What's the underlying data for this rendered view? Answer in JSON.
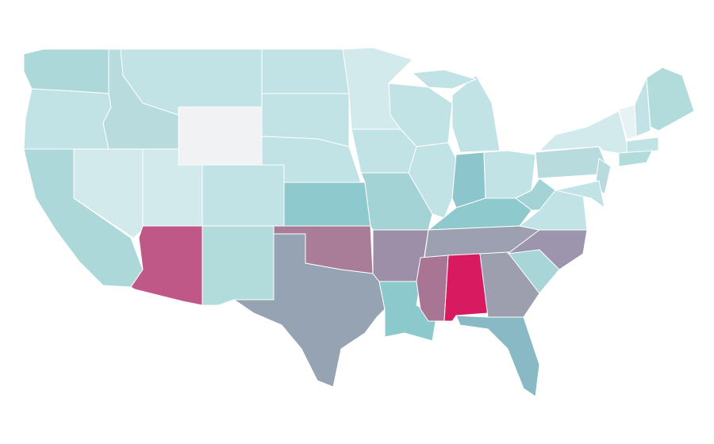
{
  "map": {
    "regions": [
      {
        "color": "#add8da"
      },
      {
        "color": "#c2e3e5"
      },
      {
        "color": "#add8da"
      },
      {
        "color": "#d3eaec"
      },
      {
        "color": "#b8dcde"
      },
      {
        "color": "#c2e3e5"
      },
      {
        "color": "#f1f2f4"
      },
      {
        "color": "#d3eaec"
      },
      {
        "color": "#bf5787"
      },
      {
        "color": "#c2e3e5"
      },
      {
        "color": "#b2dcdc"
      },
      {
        "color": "#c2e3e5"
      },
      {
        "color": "#c2e3e5"
      },
      {
        "color": "#c2e3e5"
      },
      {
        "color": "#8ecacd"
      },
      {
        "color": "#a97c97"
      },
      {
        "color": "#95a3b2"
      },
      {
        "color": "#d3eaec"
      },
      {
        "color": "#c2e3e5"
      },
      {
        "color": "#a4d3d6"
      },
      {
        "color": "#9e8fa8"
      },
      {
        "color": "#8cc9cc"
      },
      {
        "color": "#c2e3e5"
      },
      {
        "color": "#c2e3e5"
      },
      {
        "color": "#c2e3e5"
      },
      {
        "color": "#c2e3e5"
      },
      {
        "color": "#8cc6cc"
      },
      {
        "color": "#c2e3e5"
      },
      {
        "color": "#8ecacd"
      },
      {
        "color": "#9da0b0"
      },
      {
        "color": "#a97595"
      },
      {
        "color": "#d81b60"
      },
      {
        "color": "#9e9fae"
      },
      {
        "color": "#88b9c4"
      },
      {
        "color": "#a8d6d8"
      },
      {
        "color": "#9d95ad"
      },
      {
        "color": "#c2e3e5"
      },
      {
        "color": "#a4d3d6"
      },
      {
        "color": "#b8dcde"
      },
      {
        "color": "#d3eaec"
      },
      {
        "color": "#e6f2f3"
      },
      {
        "color": "#c2e3e5"
      },
      {
        "color": "#b2dcdc"
      },
      {
        "color": "#c2e3e5"
      },
      {
        "color": "#b2dcdc"
      },
      {
        "color": "#b8dcde"
      },
      {
        "color": "#c2e3e5"
      }
    ]
  }
}
